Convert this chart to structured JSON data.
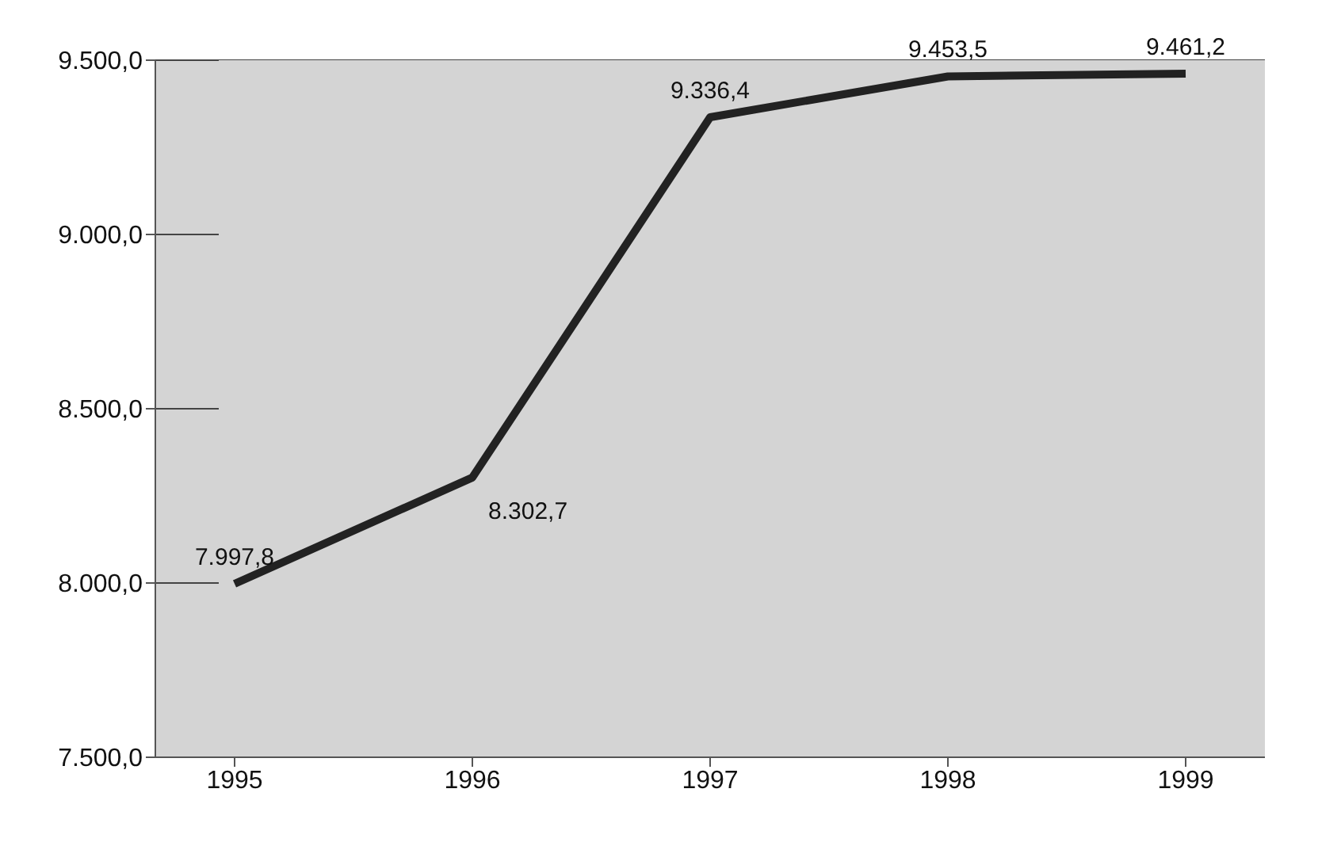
{
  "chart_data": {
    "type": "line",
    "categories": [
      "1995",
      "1996",
      "1997",
      "1998",
      "1999"
    ],
    "series": [
      {
        "color": "#222222",
        "values": [
          7997.8,
          8302.7,
          9336.4,
          9453.5,
          9461.2
        ],
        "value_labels": [
          "7.997,8",
          "8.302,7",
          "9.336,4",
          "9.453,5",
          "9.461,2"
        ]
      }
    ],
    "ylim": [
      7500,
      9500
    ],
    "yticks": [
      {
        "value": 7500,
        "label": "7.500,0"
      },
      {
        "value": 8000,
        "label": "8.000,0"
      },
      {
        "value": 8500,
        "label": "8.500,0"
      },
      {
        "value": 9000,
        "label": "9.000,0"
      },
      {
        "value": 9500,
        "label": "9.500,0"
      }
    ],
    "grid": "y",
    "marker": "none",
    "line_style": "solid"
  }
}
